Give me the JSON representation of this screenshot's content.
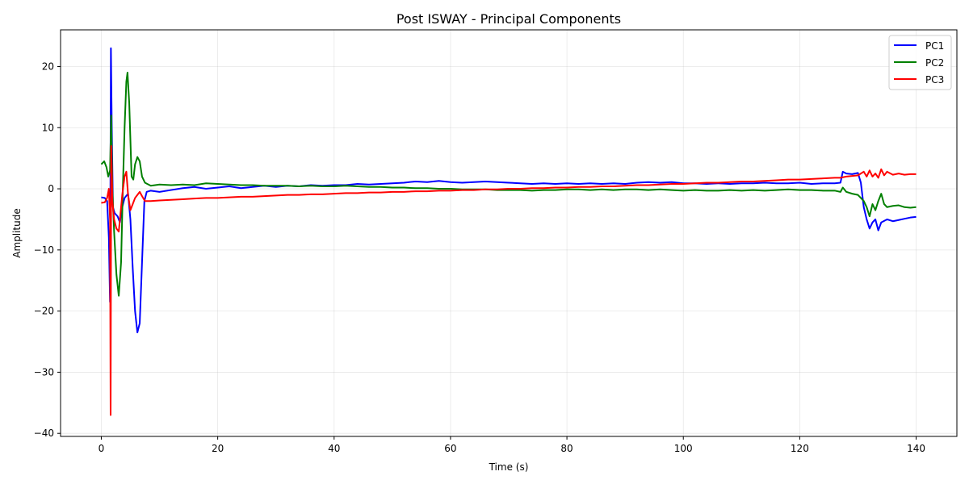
{
  "chart_data": {
    "type": "line",
    "title": "Post ISWAY - Principal Components",
    "xlabel": "Time (s)",
    "ylabel": "Amplitude",
    "xlim": [
      -7,
      147
    ],
    "ylim": [
      -40.5,
      26
    ],
    "xticks": [
      0,
      20,
      40,
      60,
      80,
      100,
      120,
      140
    ],
    "yticks": [
      -40,
      -30,
      -20,
      -10,
      0,
      10,
      20
    ],
    "grid": true,
    "legend_position": "top-right",
    "series": [
      {
        "name": "PC1",
        "color": "#0000ff",
        "points": [
          [
            0,
            -1.4
          ],
          [
            0.6,
            -1.5
          ],
          [
            1.0,
            -2.0
          ],
          [
            1.3,
            -8.0
          ],
          [
            1.5,
            -18.5
          ],
          [
            1.65,
            23.0
          ],
          [
            1.8,
            10.0
          ],
          [
            2.0,
            -3.0
          ],
          [
            2.3,
            -4.0
          ],
          [
            2.8,
            -4.5
          ],
          [
            3.2,
            -5.5
          ],
          [
            3.6,
            -3.0
          ],
          [
            4.0,
            -1.5
          ],
          [
            4.6,
            -0.8
          ],
          [
            5.0,
            -5.0
          ],
          [
            5.4,
            -13.0
          ],
          [
            5.8,
            -20.0
          ],
          [
            6.2,
            -23.5
          ],
          [
            6.6,
            -22.0
          ],
          [
            7.0,
            -12.0
          ],
          [
            7.4,
            -2.0
          ],
          [
            7.8,
            -0.5
          ],
          [
            8.5,
            -0.3
          ],
          [
            10,
            -0.5
          ],
          [
            12,
            -0.2
          ],
          [
            14,
            0.1
          ],
          [
            16,
            0.3
          ],
          [
            18,
            0.0
          ],
          [
            20,
            0.2
          ],
          [
            22,
            0.4
          ],
          [
            24,
            0.1
          ],
          [
            26,
            0.3
          ],
          [
            28,
            0.5
          ],
          [
            30,
            0.3
          ],
          [
            32,
            0.5
          ],
          [
            34,
            0.4
          ],
          [
            36,
            0.6
          ],
          [
            38,
            0.5
          ],
          [
            40,
            0.6
          ],
          [
            42,
            0.6
          ],
          [
            44,
            0.8
          ],
          [
            46,
            0.7
          ],
          [
            48,
            0.8
          ],
          [
            50,
            0.9
          ],
          [
            52,
            1.0
          ],
          [
            54,
            1.2
          ],
          [
            56,
            1.1
          ],
          [
            58,
            1.3
          ],
          [
            60,
            1.1
          ],
          [
            62,
            1.0
          ],
          [
            64,
            1.1
          ],
          [
            66,
            1.2
          ],
          [
            68,
            1.1
          ],
          [
            70,
            1.0
          ],
          [
            72,
            0.9
          ],
          [
            74,
            0.8
          ],
          [
            76,
            0.9
          ],
          [
            78,
            0.8
          ],
          [
            80,
            0.9
          ],
          [
            82,
            0.8
          ],
          [
            84,
            0.9
          ],
          [
            86,
            0.8
          ],
          [
            88,
            0.9
          ],
          [
            90,
            0.8
          ],
          [
            92,
            1.0
          ],
          [
            94,
            1.1
          ],
          [
            96,
            1.0
          ],
          [
            98,
            1.1
          ],
          [
            100,
            0.9
          ],
          [
            102,
            0.9
          ],
          [
            104,
            0.8
          ],
          [
            106,
            0.9
          ],
          [
            108,
            0.8
          ],
          [
            110,
            0.9
          ],
          [
            112,
            0.9
          ],
          [
            114,
            1.0
          ],
          [
            116,
            0.9
          ],
          [
            118,
            0.9
          ],
          [
            120,
            1.0
          ],
          [
            122,
            0.8
          ],
          [
            124,
            0.9
          ],
          [
            126,
            0.9
          ],
          [
            127,
            1.0
          ],
          [
            127.4,
            2.8
          ],
          [
            128,
            2.5
          ],
          [
            129,
            2.4
          ],
          [
            130,
            2.6
          ],
          [
            130.5,
            1.0
          ],
          [
            131,
            -3.0
          ],
          [
            131.5,
            -5.0
          ],
          [
            132,
            -6.5
          ],
          [
            132.5,
            -5.5
          ],
          [
            133,
            -5.0
          ],
          [
            133.5,
            -6.8
          ],
          [
            134,
            -5.5
          ],
          [
            135,
            -5.0
          ],
          [
            136,
            -5.3
          ],
          [
            137,
            -5.1
          ],
          [
            138,
            -4.9
          ],
          [
            139,
            -4.7
          ],
          [
            140,
            -4.6
          ]
        ]
      },
      {
        "name": "PC2",
        "color": "#008000",
        "points": [
          [
            0,
            4.0
          ],
          [
            0.5,
            4.5
          ],
          [
            0.9,
            3.5
          ],
          [
            1.2,
            2.0
          ],
          [
            1.5,
            3.0
          ],
          [
            1.7,
            12.0
          ],
          [
            1.9,
            0.0
          ],
          [
            2.2,
            -7.0
          ],
          [
            2.6,
            -14.0
          ],
          [
            3.0,
            -17.5
          ],
          [
            3.4,
            -12.0
          ],
          [
            3.7,
            0.0
          ],
          [
            4.0,
            10.0
          ],
          [
            4.3,
            17.5
          ],
          [
            4.5,
            19.0
          ],
          [
            4.8,
            14.0
          ],
          [
            5.2,
            2.0
          ],
          [
            5.5,
            1.5
          ],
          [
            5.8,
            4.0
          ],
          [
            6.2,
            5.2
          ],
          [
            6.6,
            4.5
          ],
          [
            7.0,
            2.0
          ],
          [
            7.5,
            1.0
          ],
          [
            8.5,
            0.5
          ],
          [
            10,
            0.7
          ],
          [
            12,
            0.6
          ],
          [
            14,
            0.7
          ],
          [
            16,
            0.6
          ],
          [
            18,
            0.9
          ],
          [
            20,
            0.8
          ],
          [
            22,
            0.7
          ],
          [
            24,
            0.6
          ],
          [
            26,
            0.6
          ],
          [
            28,
            0.5
          ],
          [
            30,
            0.5
          ],
          [
            32,
            0.5
          ],
          [
            34,
            0.4
          ],
          [
            36,
            0.5
          ],
          [
            38,
            0.4
          ],
          [
            40,
            0.4
          ],
          [
            42,
            0.5
          ],
          [
            44,
            0.4
          ],
          [
            46,
            0.3
          ],
          [
            48,
            0.3
          ],
          [
            50,
            0.2
          ],
          [
            52,
            0.2
          ],
          [
            54,
            0.1
          ],
          [
            56,
            0.1
          ],
          [
            58,
            0.0
          ],
          [
            60,
            0.0
          ],
          [
            62,
            -0.1
          ],
          [
            64,
            -0.1
          ],
          [
            66,
            -0.1
          ],
          [
            68,
            -0.2
          ],
          [
            70,
            -0.2
          ],
          [
            72,
            -0.2
          ],
          [
            74,
            -0.3
          ],
          [
            76,
            -0.2
          ],
          [
            78,
            -0.2
          ],
          [
            80,
            -0.1
          ],
          [
            82,
            -0.1
          ],
          [
            84,
            -0.2
          ],
          [
            86,
            -0.1
          ],
          [
            88,
            -0.2
          ],
          [
            90,
            -0.1
          ],
          [
            92,
            -0.1
          ],
          [
            94,
            -0.2
          ],
          [
            96,
            -0.1
          ],
          [
            98,
            -0.2
          ],
          [
            100,
            -0.3
          ],
          [
            102,
            -0.2
          ],
          [
            104,
            -0.3
          ],
          [
            106,
            -0.3
          ],
          [
            108,
            -0.2
          ],
          [
            110,
            -0.3
          ],
          [
            112,
            -0.2
          ],
          [
            114,
            -0.3
          ],
          [
            116,
            -0.2
          ],
          [
            118,
            -0.1
          ],
          [
            120,
            -0.2
          ],
          [
            122,
            -0.2
          ],
          [
            124,
            -0.3
          ],
          [
            126,
            -0.3
          ],
          [
            127,
            -0.5
          ],
          [
            127.4,
            0.2
          ],
          [
            128,
            -0.5
          ],
          [
            129,
            -0.8
          ],
          [
            130,
            -1.0
          ],
          [
            130.5,
            -1.5
          ],
          [
            131,
            -2.0
          ],
          [
            131.5,
            -3.0
          ],
          [
            132,
            -4.5
          ],
          [
            132.5,
            -2.5
          ],
          [
            133,
            -3.5
          ],
          [
            133.5,
            -2.0
          ],
          [
            134,
            -0.8
          ],
          [
            134.5,
            -2.5
          ],
          [
            135,
            -3.0
          ],
          [
            136,
            -2.8
          ],
          [
            137,
            -2.7
          ],
          [
            138,
            -3.0
          ],
          [
            139,
            -3.1
          ],
          [
            140,
            -3.0
          ]
        ]
      },
      {
        "name": "PC3",
        "color": "#ff0000",
        "points": [
          [
            0,
            -2.3
          ],
          [
            0.6,
            -2.2
          ],
          [
            1.0,
            -1.5
          ],
          [
            1.3,
            0.0
          ],
          [
            1.5,
            -5.0
          ],
          [
            1.6,
            -37.0
          ],
          [
            1.7,
            7.0
          ],
          [
            1.9,
            -2.0
          ],
          [
            2.2,
            -5.0
          ],
          [
            2.6,
            -6.5
          ],
          [
            3.0,
            -7.0
          ],
          [
            3.3,
            -4.0
          ],
          [
            3.6,
            -1.0
          ],
          [
            4.0,
            2.0
          ],
          [
            4.3,
            2.8
          ],
          [
            4.6,
            -1.0
          ],
          [
            5.0,
            -3.5
          ],
          [
            5.4,
            -2.5
          ],
          [
            5.8,
            -1.5
          ],
          [
            6.2,
            -1.0
          ],
          [
            6.6,
            -0.5
          ],
          [
            7.0,
            -1.2
          ],
          [
            7.5,
            -2.0
          ],
          [
            8.5,
            -2.0
          ],
          [
            10,
            -1.9
          ],
          [
            12,
            -1.8
          ],
          [
            14,
            -1.7
          ],
          [
            16,
            -1.6
          ],
          [
            18,
            -1.5
          ],
          [
            20,
            -1.5
          ],
          [
            22,
            -1.4
          ],
          [
            24,
            -1.3
          ],
          [
            26,
            -1.3
          ],
          [
            28,
            -1.2
          ],
          [
            30,
            -1.1
          ],
          [
            32,
            -1.0
          ],
          [
            34,
            -1.0
          ],
          [
            36,
            -0.9
          ],
          [
            38,
            -0.9
          ],
          [
            40,
            -0.8
          ],
          [
            42,
            -0.7
          ],
          [
            44,
            -0.7
          ],
          [
            46,
            -0.6
          ],
          [
            48,
            -0.6
          ],
          [
            50,
            -0.5
          ],
          [
            52,
            -0.5
          ],
          [
            54,
            -0.4
          ],
          [
            56,
            -0.4
          ],
          [
            58,
            -0.3
          ],
          [
            60,
            -0.3
          ],
          [
            62,
            -0.2
          ],
          [
            64,
            -0.2
          ],
          [
            66,
            -0.1
          ],
          [
            68,
            -0.1
          ],
          [
            70,
            0.0
          ],
          [
            72,
            0.0
          ],
          [
            74,
            0.1
          ],
          [
            76,
            0.1
          ],
          [
            78,
            0.2
          ],
          [
            80,
            0.2
          ],
          [
            82,
            0.3
          ],
          [
            84,
            0.3
          ],
          [
            86,
            0.4
          ],
          [
            88,
            0.4
          ],
          [
            90,
            0.5
          ],
          [
            92,
            0.6
          ],
          [
            94,
            0.6
          ],
          [
            96,
            0.7
          ],
          [
            98,
            0.8
          ],
          [
            100,
            0.8
          ],
          [
            102,
            0.9
          ],
          [
            104,
            1.0
          ],
          [
            106,
            1.0
          ],
          [
            108,
            1.1
          ],
          [
            110,
            1.2
          ],
          [
            112,
            1.2
          ],
          [
            114,
            1.3
          ],
          [
            116,
            1.4
          ],
          [
            118,
            1.5
          ],
          [
            120,
            1.5
          ],
          [
            122,
            1.6
          ],
          [
            124,
            1.7
          ],
          [
            126,
            1.8
          ],
          [
            127,
            1.8
          ],
          [
            128,
            2.0
          ],
          [
            129,
            2.1
          ],
          [
            130,
            2.2
          ],
          [
            130.5,
            2.5
          ],
          [
            131,
            2.8
          ],
          [
            131.5,
            2.0
          ],
          [
            132,
            3.0
          ],
          [
            132.5,
            2.0
          ],
          [
            133,
            2.5
          ],
          [
            133.5,
            1.8
          ],
          [
            134,
            3.2
          ],
          [
            134.5,
            2.2
          ],
          [
            135,
            2.8
          ],
          [
            136,
            2.3
          ],
          [
            137,
            2.5
          ],
          [
            138,
            2.3
          ],
          [
            139,
            2.4
          ],
          [
            140,
            2.4
          ]
        ]
      }
    ]
  }
}
